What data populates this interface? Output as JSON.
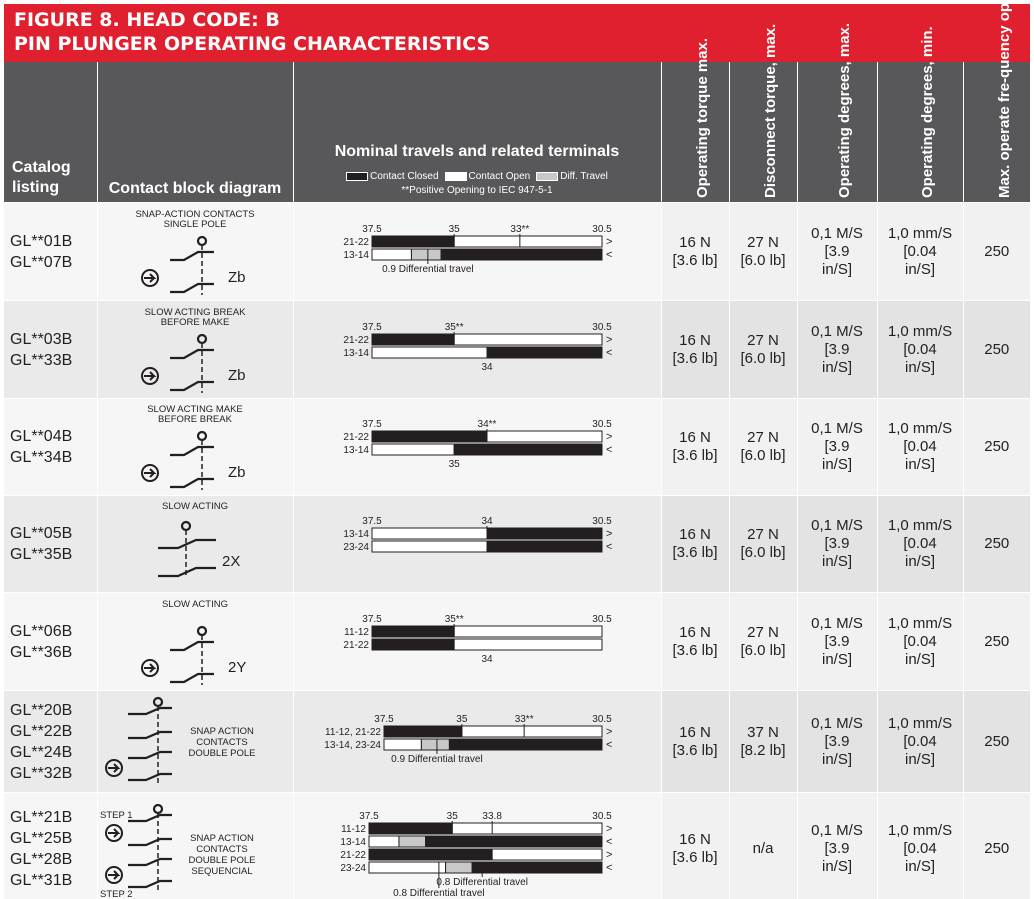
{
  "title": {
    "line1": "FIGURE 8. HEAD CODE: B",
    "line2": "PIN PLUNGER OPERATING CHARACTERISTICS"
  },
  "header": {
    "catalog": "Catalog listing",
    "diagram": "Contact block diagram",
    "travel_title": "Nominal travels and related terminals",
    "legend_closed": "Contact Closed",
    "legend_open": "Contact Open",
    "legend_diff": "Diff. Travel",
    "legend_note": "**Positive Opening to IEC 947-5-1",
    "op_torque": "Operating torque max.",
    "disc_torque": "Disconnect torque, max.",
    "op_deg_max": "Operating degrees, max.",
    "op_deg_min": "Operating degrees, min.",
    "max_freq": "Max. operate fre-quency ops/min"
  },
  "colors": {
    "title_bg": "#e0202e",
    "header_bg": "#58585a",
    "closed": "#231f20",
    "open": "#ffffff",
    "diff": "#c8c8c8"
  },
  "rows": [
    {
      "catalog": [
        "GL**01B",
        "GL**07B"
      ],
      "diagram_type": "snap",
      "diagram_title": [
        "SNAP-ACTION CONTACTS",
        "SINGLE POLE"
      ],
      "diagram_label": "Zb",
      "travel": {
        "ticks": [
          "37.5",
          "35",
          "33**",
          "30.5"
        ],
        "tick_vals": [
          37.5,
          35,
          33,
          30.5
        ],
        "lines": [
          {
            "label": "21-22",
            "segs": [
              [
                37.5,
                35,
                "c"
              ],
              [
                35,
                30.5,
                "o"
              ]
            ],
            "arrow": ">"
          },
          {
            "label": "13-14",
            "segs": [
              [
                37.5,
                36.3,
                "o"
              ],
              [
                36.3,
                35.4,
                "d"
              ],
              [
                35.4,
                30.5,
                "c"
              ]
            ],
            "arrow": "<"
          }
        ],
        "notes": [
          {
            "text": "0.9 Differential travel",
            "at": 35.8
          }
        ]
      },
      "op_torque": [
        "16 N",
        "[3.6 lb]"
      ],
      "disc_torque": [
        "27 N",
        "[6.0 lb]"
      ],
      "deg_max": [
        "0,1 M/S",
        "[3.9",
        "in/S]"
      ],
      "deg_min": [
        "1,0 mm/S",
        "[0.04",
        "in/S]"
      ],
      "freq": "250"
    },
    {
      "catalog": [
        "GL**03B",
        "GL**33B"
      ],
      "diagram_type": "single",
      "diagram_title": [
        "SLOW ACTING BREAK",
        "BEFORE MAKE"
      ],
      "diagram_label": "Zb",
      "travel": {
        "ticks": [
          "37.5",
          "35**",
          "30.5"
        ],
        "tick_vals": [
          37.5,
          35,
          30.5
        ],
        "lines": [
          {
            "label": "21-22",
            "segs": [
              [
                37.5,
                35,
                "c"
              ],
              [
                35,
                30.5,
                "o"
              ]
            ],
            "arrow": ">"
          },
          {
            "label": "13-14",
            "segs": [
              [
                37.5,
                34,
                "o"
              ],
              [
                34,
                30.5,
                "c"
              ]
            ],
            "arrow": "<"
          }
        ],
        "notes": [
          {
            "text": "34",
            "at": 34
          }
        ]
      },
      "op_torque": [
        "16 N",
        "[3.6 lb]"
      ],
      "disc_torque": [
        "27 N",
        "[6.0 lb]"
      ],
      "deg_max": [
        "0,1 M/S",
        "[3.9",
        "in/S]"
      ],
      "deg_min": [
        "1,0 mm/S",
        "[0.04",
        "in/S]"
      ],
      "freq": "250"
    },
    {
      "catalog": [
        "GL**04B",
        "GL**34B"
      ],
      "diagram_type": "single",
      "diagram_title": [
        "SLOW ACTING MAKE",
        "BEFORE BREAK"
      ],
      "diagram_label": "Zb",
      "travel": {
        "ticks": [
          "37.5",
          "34**",
          "30.5"
        ],
        "tick_vals": [
          37.5,
          34,
          30.5
        ],
        "lines": [
          {
            "label": "21-22",
            "segs": [
              [
                37.5,
                34,
                "c"
              ],
              [
                34,
                30.5,
                "o"
              ]
            ],
            "arrow": ">"
          },
          {
            "label": "13-14",
            "segs": [
              [
                37.5,
                35,
                "o"
              ],
              [
                35,
                30.5,
                "c"
              ]
            ],
            "arrow": "<"
          }
        ],
        "notes": [
          {
            "text": "35",
            "at": 35
          }
        ]
      },
      "op_torque": [
        "16 N",
        "[3.6 lb]"
      ],
      "disc_torque": [
        "27 N",
        "[6.0 lb]"
      ],
      "deg_max": [
        "0,1 M/S",
        "[3.9",
        "in/S]"
      ],
      "deg_min": [
        "1,0 mm/S",
        "[0.04",
        "in/S]"
      ],
      "freq": "250"
    },
    {
      "catalog": [
        "GL**05B",
        "GL**35B"
      ],
      "diagram_type": "two",
      "diagram_title": [
        "SLOW ACTING"
      ],
      "diagram_label": "2X",
      "travel": {
        "ticks": [
          "37.5",
          "34",
          "30.5"
        ],
        "tick_vals": [
          37.5,
          34,
          30.5
        ],
        "lines": [
          {
            "label": "13-14",
            "segs": [
              [
                37.5,
                34,
                "o"
              ],
              [
                34,
                30.5,
                "c"
              ]
            ],
            "arrow": ">"
          },
          {
            "label": "23-24",
            "segs": [
              [
                37.5,
                34,
                "o"
              ],
              [
                34,
                30.5,
                "c"
              ]
            ],
            "arrow": "<"
          }
        ],
        "notes": []
      },
      "op_torque": [
        "16 N",
        "[3.6 lb]"
      ],
      "disc_torque": [
        "27 N",
        "[6.0 lb]"
      ],
      "deg_max": [
        "0,1 M/S",
        "[3.9",
        "in/S]"
      ],
      "deg_min": [
        "1,0 mm/S",
        "[0.04",
        "in/S]"
      ],
      "freq": "250"
    },
    {
      "catalog": [
        "GL**06B",
        "GL**36B"
      ],
      "diagram_type": "single",
      "diagram_title": [
        "SLOW ACTING"
      ],
      "diagram_label": "2Y",
      "travel": {
        "ticks": [
          "37.5",
          "35**",
          "30.5"
        ],
        "tick_vals": [
          37.5,
          35,
          30.5
        ],
        "lines": [
          {
            "label": "11-12",
            "segs": [
              [
                37.5,
                35,
                "c"
              ],
              [
                35,
                30.5,
                "o"
              ]
            ],
            "arrow": ""
          },
          {
            "label": "21-22",
            "segs": [
              [
                37.5,
                35,
                "c"
              ],
              [
                35,
                30.5,
                "o"
              ]
            ],
            "arrow": ""
          }
        ],
        "notes": [
          {
            "text": "34",
            "at": 34
          }
        ]
      },
      "op_torque": [
        "16 N",
        "[3.6 lb]"
      ],
      "disc_torque": [
        "27 N",
        "[6.0 lb]"
      ],
      "deg_max": [
        "0,1 M/S",
        "[3.9",
        "in/S]"
      ],
      "deg_min": [
        "1,0 mm/S",
        "[0.04",
        "in/S]"
      ],
      "freq": "250"
    },
    {
      "catalog": [
        "GL**20B",
        "GL**22B",
        "GL**24B",
        "GL**32B"
      ],
      "diagram_type": "double",
      "diagram_title": [],
      "diagram_side": [
        "SNAP ACTION",
        "CONTACTS",
        "DOUBLE POLE"
      ],
      "diagram_label": "",
      "travel": {
        "ticks": [
          "37.5",
          "35",
          "33**",
          "30.5"
        ],
        "tick_vals": [
          37.5,
          35,
          33,
          30.5
        ],
        "lines": [
          {
            "label": "11-12, 21-22",
            "segs": [
              [
                37.5,
                35,
                "c"
              ],
              [
                35,
                30.5,
                "o"
              ]
            ],
            "arrow": ">"
          },
          {
            "label": "13-14, 23-24",
            "segs": [
              [
                37.5,
                36.3,
                "o"
              ],
              [
                36.3,
                35.4,
                "d"
              ],
              [
                35.4,
                30.5,
                "c"
              ]
            ],
            "arrow": "<"
          }
        ],
        "notes": [
          {
            "text": "0.9 Differential travel",
            "at": 35.8
          }
        ]
      },
      "op_torque": [
        "16 N",
        "[3.6 lb]"
      ],
      "disc_torque": [
        "37 N",
        "[8.2 lb]"
      ],
      "deg_max": [
        "0,1 M/S",
        "[3.9",
        "in/S]"
      ],
      "deg_min": [
        "1,0 mm/S",
        "[0.04",
        "in/S]"
      ],
      "freq": "250"
    },
    {
      "catalog": [
        "GL**21B",
        "GL**25B",
        "GL**28B",
        "GL**31B"
      ],
      "diagram_type": "sequential",
      "diagram_title": [],
      "diagram_side": [
        "SNAP ACTION",
        "CONTACTS",
        "DOUBLE POLE",
        "SEQUENCIAL"
      ],
      "step1": "STEP 1",
      "step2": "STEP 2",
      "diagram_label": "",
      "travel": {
        "ticks": [
          "37.5",
          "35",
          "33.8",
          "30.5"
        ],
        "tick_vals": [
          37.5,
          35,
          33.8,
          30.5
        ],
        "lines": [
          {
            "label": "11-12",
            "segs": [
              [
                37.5,
                35,
                "c"
              ],
              [
                35,
                30.5,
                "o"
              ]
            ],
            "arrow": ">"
          },
          {
            "label": "13-14",
            "segs": [
              [
                37.5,
                36.6,
                "o"
              ],
              [
                36.6,
                35.8,
                "d"
              ],
              [
                35.8,
                30.5,
                "c"
              ]
            ],
            "arrow": "<"
          },
          {
            "label": "21-22",
            "segs": [
              [
                37.5,
                33.8,
                "c"
              ],
              [
                33.8,
                30.5,
                "o"
              ]
            ],
            "arrow": ">"
          },
          {
            "label": "23-24",
            "segs": [
              [
                37.5,
                35.2,
                "o"
              ],
              [
                35.2,
                34.4,
                "d"
              ],
              [
                34.4,
                30.5,
                "c"
              ]
            ],
            "arrow": "<"
          }
        ],
        "notes": [
          {
            "text": "0.8 Differential travel",
            "at": 34.1,
            "row": 0
          },
          {
            "text": "0.8 Differential travel",
            "at": 35.4,
            "row": 1
          }
        ]
      },
      "op_torque": [
        "16 N",
        "[3.6 lb]"
      ],
      "disc_torque": [
        "n/a"
      ],
      "deg_max": [
        "0,1 M/S",
        "[3.9",
        "in/S]"
      ],
      "deg_min": [
        "1,0 mm/S",
        "[0.04",
        "in/S]"
      ],
      "freq": "250"
    }
  ]
}
